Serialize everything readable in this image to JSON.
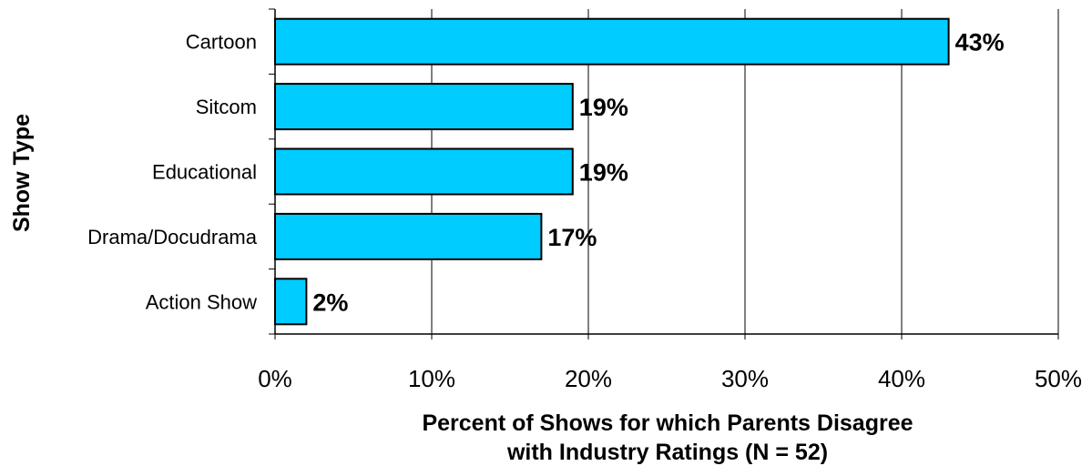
{
  "chart_data": {
    "type": "bar",
    "orientation": "horizontal",
    "categories": [
      "Cartoon",
      "Sitcom",
      "Educational",
      "Drama/Docudrama",
      "Action Show"
    ],
    "values": [
      43,
      19,
      19,
      17,
      2
    ],
    "value_labels": [
      "43%",
      "19%",
      "19%",
      "17%",
      "2%"
    ],
    "xlabel_lines": [
      "Percent of Shows for which Parents Disagree",
      "with Industry Ratings (N = 52)"
    ],
    "ylabel": "Show Type",
    "xlim": [
      0,
      50
    ],
    "xticks": [
      0,
      10,
      20,
      30,
      40,
      50
    ],
    "xtick_labels": [
      "0%",
      "10%",
      "20%",
      "30%",
      "40%",
      "50%"
    ],
    "grid": "vertical",
    "bar_color": "#00CCFF",
    "bar_edge_color": "#000000"
  }
}
